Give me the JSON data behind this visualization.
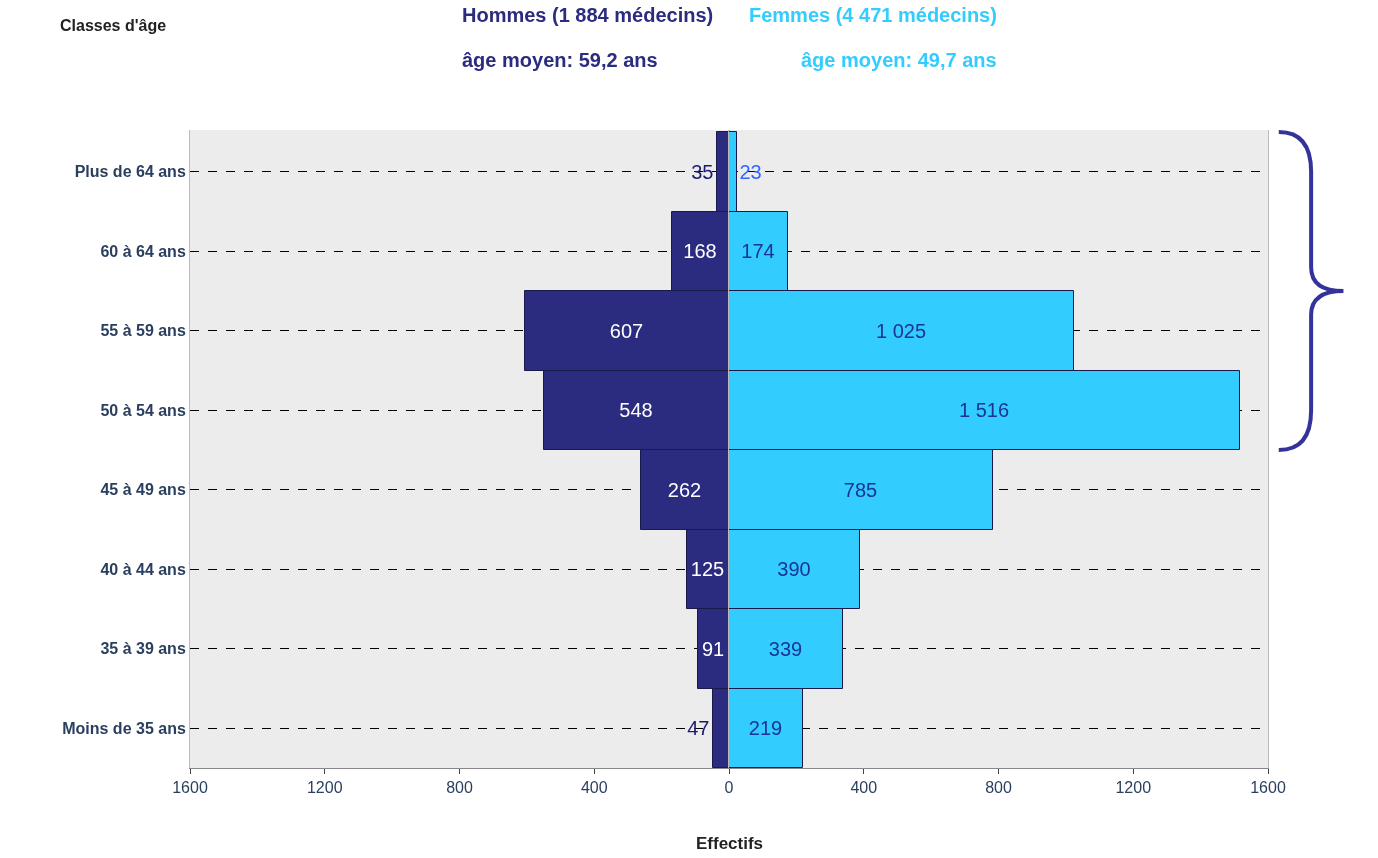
{
  "chart_data": [
    {
      "type": "bar",
      "orientation": "horizontal",
      "xlabel": "Effectifs",
      "categories": [
        "Plus de 64 ans",
        "60 à 64 ans",
        "55 à 59 ans",
        "50 à 54 ans",
        "45 à 49 ans",
        "40 à 44 ans",
        "35 à 39 ans",
        "Moins de 35 ans"
      ],
      "series": [
        {
          "name": "Hommes (1 884 médecins)",
          "color": "#2b2b7f",
          "values": [
            35,
            168,
            607,
            548,
            262,
            125,
            91,
            47
          ]
        }
      ],
      "data_labels": true,
      "annotations": [
        "Classes d'âge",
        "âge moyen: 59,2 ans"
      ],
      "xlim": [
        1600,
        0
      ],
      "xticks": [
        1600,
        1200,
        800,
        400,
        0
      ],
      "grid": "y"
    },
    {
      "type": "bar",
      "orientation": "horizontal",
      "categories": [
        "Plus de 64 ans",
        "60 à 64 ans",
        "55 à 59 ans",
        "50 à 54 ans",
        "45 à 49 ans",
        "40 à 44 ans",
        "35 à 39 ans",
        "Moins de 35 ans"
      ],
      "series": [
        {
          "name": "Femmes (4 471 médecins)",
          "color": "#33ccff",
          "values": [
            23,
            174,
            1025,
            1516,
            785,
            390,
            339,
            219
          ],
          "value_labels": [
            "23",
            "174",
            "1 025",
            "1 516",
            "785",
            "390",
            "339",
            "219"
          ]
        }
      ],
      "annotations": [
        "âge moyen: 49,7 ans"
      ],
      "xlim": [
        0,
        1600
      ],
      "xticks": [
        {
          "value": 0,
          "label": null
        },
        400,
        800,
        1200,
        1600
      ],
      "grid": "y",
      "tick_labels": "x"
    }
  ]
}
